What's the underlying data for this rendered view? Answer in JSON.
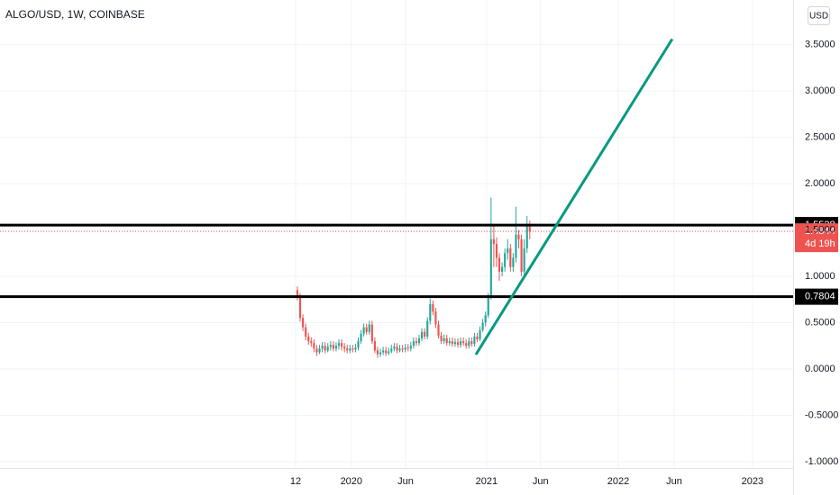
{
  "chart_data": {
    "type": "candlestick",
    "title": "ALGO/USD, 1W, COINBASE",
    "currency": "USD",
    "up_color": "#26a69a",
    "down_color": "#ef5350",
    "grid": true,
    "x": [
      0,
      1,
      2,
      3,
      4,
      5,
      6,
      7,
      8,
      9,
      10,
      11,
      12,
      13,
      14,
      15,
      16,
      17,
      18,
      19,
      20,
      21,
      22,
      23,
      24,
      25,
      26,
      27,
      28,
      29,
      30,
      31,
      32,
      33,
      34,
      35,
      36,
      37,
      38,
      39,
      40,
      41,
      42,
      43,
      44,
      45,
      46,
      47,
      48,
      49,
      50,
      51,
      52,
      53,
      54,
      55,
      56,
      57,
      58,
      59,
      60,
      61,
      62,
      63,
      64,
      65,
      66,
      67,
      68,
      69,
      70,
      71,
      72,
      73,
      74,
      75,
      76,
      77,
      78,
      79,
      80,
      81,
      82,
      83,
      84
    ],
    "open": [
      0.85,
      0.78,
      0.55,
      0.45,
      0.35,
      0.3,
      0.28,
      0.22,
      0.18,
      0.22,
      0.25,
      0.2,
      0.24,
      0.26,
      0.22,
      0.25,
      0.28,
      0.24,
      0.22,
      0.2,
      0.22,
      0.21,
      0.23,
      0.3,
      0.38,
      0.45,
      0.4,
      0.48,
      0.3,
      0.2,
      0.16,
      0.18,
      0.2,
      0.17,
      0.19,
      0.22,
      0.24,
      0.2,
      0.22,
      0.21,
      0.23,
      0.22,
      0.25,
      0.3,
      0.28,
      0.33,
      0.4,
      0.35,
      0.52,
      0.7,
      0.62,
      0.48,
      0.36,
      0.3,
      0.33,
      0.28,
      0.3,
      0.27,
      0.29,
      0.26,
      0.3,
      0.28,
      0.25,
      0.3,
      0.27,
      0.35,
      0.32,
      0.42,
      0.5,
      0.58,
      0.78,
      1.4,
      1.35,
      1.2,
      1.05,
      1.1,
      1.25,
      1.3,
      1.1,
      1.2,
      1.45,
      1.4,
      1.05,
      1.3,
      1.55
    ],
    "high": [
      0.89,
      0.82,
      0.59,
      0.49,
      0.39,
      0.34,
      0.32,
      0.26,
      0.26,
      0.29,
      0.29,
      0.28,
      0.3,
      0.3,
      0.29,
      0.32,
      0.32,
      0.28,
      0.26,
      0.26,
      0.26,
      0.27,
      0.34,
      0.42,
      0.49,
      0.49,
      0.52,
      0.52,
      0.34,
      0.24,
      0.22,
      0.24,
      0.24,
      0.23,
      0.26,
      0.28,
      0.28,
      0.26,
      0.26,
      0.27,
      0.27,
      0.29,
      0.34,
      0.34,
      0.37,
      0.44,
      0.44,
      0.56,
      0.76,
      0.74,
      0.66,
      0.52,
      0.4,
      0.37,
      0.37,
      0.34,
      0.34,
      0.33,
      0.33,
      0.34,
      0.34,
      0.32,
      0.34,
      0.34,
      0.39,
      0.39,
      0.46,
      0.54,
      0.62,
      0.82,
      1.85,
      1.55,
      1.42,
      1.25,
      1.15,
      1.3,
      1.4,
      1.35,
      1.25,
      1.75,
      1.5,
      1.45,
      1.4,
      1.65,
      1.6
    ],
    "low": [
      0.74,
      0.51,
      0.41,
      0.31,
      0.26,
      0.24,
      0.18,
      0.14,
      0.16,
      0.18,
      0.17,
      0.18,
      0.2,
      0.19,
      0.19,
      0.21,
      0.2,
      0.18,
      0.17,
      0.17,
      0.18,
      0.18,
      0.2,
      0.27,
      0.35,
      0.37,
      0.37,
      0.27,
      0.17,
      0.12,
      0.13,
      0.15,
      0.14,
      0.15,
      0.17,
      0.19,
      0.17,
      0.18,
      0.18,
      0.18,
      0.19,
      0.19,
      0.22,
      0.25,
      0.25,
      0.3,
      0.32,
      0.32,
      0.48,
      0.58,
      0.44,
      0.33,
      0.27,
      0.27,
      0.25,
      0.25,
      0.24,
      0.24,
      0.23,
      0.23,
      0.25,
      0.22,
      0.22,
      0.24,
      0.24,
      0.29,
      0.3,
      0.4,
      0.46,
      0.55,
      0.75,
      1.1,
      1.1,
      0.95,
      1.0,
      1.05,
      1.18,
      1.05,
      1.05,
      1.15,
      1.3,
      1.0,
      1.0,
      1.25,
      1.4
    ],
    "close": [
      0.78,
      0.55,
      0.45,
      0.35,
      0.3,
      0.28,
      0.22,
      0.18,
      0.22,
      0.25,
      0.2,
      0.24,
      0.26,
      0.22,
      0.25,
      0.28,
      0.24,
      0.22,
      0.2,
      0.22,
      0.21,
      0.23,
      0.3,
      0.38,
      0.45,
      0.4,
      0.48,
      0.3,
      0.2,
      0.16,
      0.18,
      0.2,
      0.17,
      0.19,
      0.22,
      0.24,
      0.2,
      0.22,
      0.21,
      0.23,
      0.22,
      0.25,
      0.3,
      0.28,
      0.33,
      0.4,
      0.35,
      0.52,
      0.7,
      0.62,
      0.48,
      0.36,
      0.3,
      0.33,
      0.28,
      0.3,
      0.27,
      0.29,
      0.26,
      0.3,
      0.28,
      0.25,
      0.3,
      0.27,
      0.35,
      0.32,
      0.42,
      0.5,
      0.58,
      0.78,
      1.4,
      1.35,
      1.2,
      1.05,
      1.1,
      1.25,
      1.3,
      1.1,
      1.2,
      1.45,
      1.4,
      1.05,
      1.3,
      1.55,
      1.48
    ],
    "xlim": [
      -107.5,
      179.2
    ],
    "xticks": [
      {
        "value": -0.65,
        "label": "12"
      },
      {
        "value": 19.5,
        "label": "2020"
      },
      {
        "value": 39.1,
        "label": "Jun"
      },
      {
        "value": 68.4,
        "label": "2021"
      },
      {
        "value": 87.9,
        "label": "Jun"
      },
      {
        "value": 116,
        "label": "2022"
      },
      {
        "value": 136.2,
        "label": "Jun"
      },
      {
        "value": 164.5,
        "label": "2023"
      }
    ],
    "ylim": [
      -1.068,
      3.981
    ],
    "yticks": [
      {
        "value": -1,
        "label": "-1.0000"
      },
      {
        "value": -0.5,
        "label": "-0.5000"
      },
      {
        "value": 0,
        "label": "0.0000"
      },
      {
        "value": 0.5,
        "label": "0.5000"
      },
      {
        "value": 1,
        "label": "1.0000"
      },
      {
        "value": 1.5,
        "label": "1.5000"
      },
      {
        "value": 2,
        "label": "2.0000"
      },
      {
        "value": 2.5,
        "label": "2.5000"
      },
      {
        "value": 3,
        "label": "3.0000"
      },
      {
        "value": 3.5,
        "label": "3.5000"
      }
    ],
    "horizontal_lines": [
      1.5528,
      0.7804
    ],
    "last_price": 1.4844,
    "countdown": "4d 19h",
    "trend_line": {
      "color": "#089981",
      "x": [
        64.5,
        135.5
      ],
      "y": [
        0.155,
        3.56
      ]
    }
  }
}
